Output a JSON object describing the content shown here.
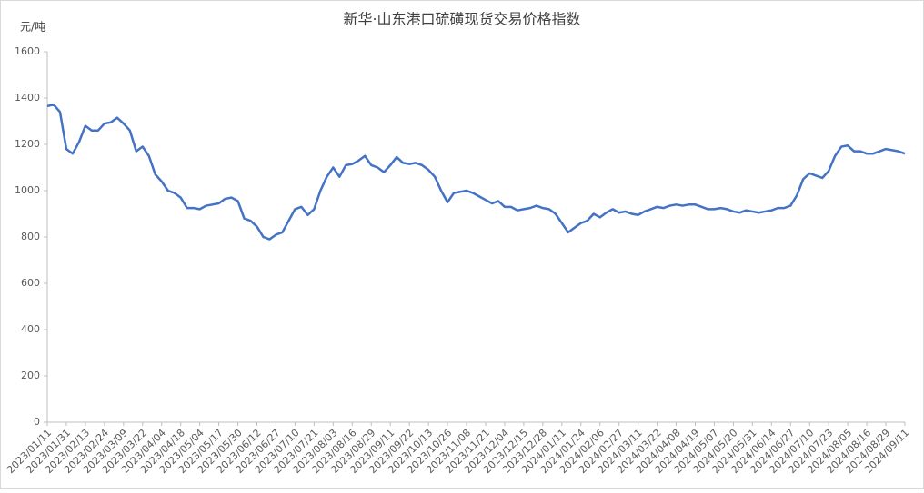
{
  "chart_data": {
    "type": "line",
    "title": "新华·山东港口硫磺现货交易价格指数",
    "y_label": "元/吨",
    "categories": [
      "2023/01/11",
      null,
      null,
      "2023/01/31",
      null,
      null,
      "2023/02/13",
      null,
      null,
      "2023/02/24",
      null,
      null,
      "2023/03/09",
      null,
      null,
      "2023/03/22",
      null,
      null,
      "2023/04/04",
      null,
      null,
      "2023/04/18",
      null,
      null,
      "2023/05/04",
      null,
      null,
      "2023/05/17",
      null,
      null,
      "2023/05/30",
      null,
      null,
      "2023/06/12",
      null,
      null,
      "2023/06/27",
      null,
      null,
      "2023/07/10",
      null,
      null,
      "2023/07/21",
      null,
      null,
      "2023/08/03",
      null,
      null,
      "2023/08/16",
      null,
      null,
      "2023/08/29",
      null,
      null,
      "2023/09/11",
      null,
      null,
      "2023/09/22",
      null,
      null,
      "2023/10/13",
      null,
      null,
      "2023/10/26",
      null,
      null,
      "2023/11/08",
      null,
      null,
      "2023/11/21",
      null,
      null,
      "2023/12/04",
      null,
      null,
      "2023/12/15",
      null,
      null,
      "2023/12/28",
      null,
      null,
      "2024/01/11",
      null,
      null,
      "2024/01/24",
      null,
      null,
      "2024/02/06",
      null,
      null,
      "2024/02/27",
      null,
      null,
      "2024/03/11",
      null,
      null,
      "2024/03/22",
      null,
      null,
      "2024/04/08",
      null,
      null,
      "2024/04/19",
      null,
      null,
      "2024/05/07",
      null,
      null,
      "2024/05/20",
      null,
      null,
      "2024/05/31",
      null,
      null,
      "2024/06/14",
      null,
      null,
      "2024/06/27",
      null,
      null,
      "2024/07/10",
      null,
      null,
      "2024/07/23",
      null,
      null,
      "2024/08/05",
      null,
      null,
      "2024/08/16",
      null,
      null,
      "2024/08/29",
      null,
      null,
      "2024/09/11"
    ],
    "series": [
      {
        "name": "价格指数",
        "color": "#4472c4",
        "values": [
          1365,
          1372,
          1340,
          1180,
          1160,
          1210,
          1280,
          1260,
          1260,
          1290,
          1295,
          1315,
          1290,
          1260,
          1170,
          1190,
          1150,
          1070,
          1040,
          1000,
          990,
          970,
          925,
          925,
          920,
          935,
          940,
          945,
          965,
          970,
          955,
          880,
          870,
          845,
          800,
          790,
          810,
          820,
          870,
          920,
          930,
          895,
          920,
          1000,
          1060,
          1100,
          1060,
          1110,
          1115,
          1130,
          1150,
          1110,
          1100,
          1080,
          1110,
          1145,
          1120,
          1115,
          1120,
          1110,
          1090,
          1060,
          1000,
          950,
          990,
          995,
          1000,
          990,
          975,
          960,
          945,
          955,
          930,
          930,
          915,
          920,
          925,
          935,
          925,
          920,
          900,
          860,
          820,
          840,
          860,
          870,
          900,
          885,
          905,
          920,
          905,
          910,
          900,
          895,
          910,
          920,
          930,
          925,
          935,
          940,
          935,
          940,
          940,
          930,
          920,
          920,
          925,
          920,
          910,
          905,
          915,
          910,
          905,
          910,
          915,
          925,
          925,
          935,
          980,
          1050,
          1075,
          1065,
          1055,
          1085,
          1150,
          1190,
          1195,
          1170,
          1170,
          1160,
          1160,
          1170,
          1180,
          1175,
          1170,
          1160
        ]
      }
    ],
    "ylim": [
      0,
      1600
    ],
    "yticks": [
      0,
      200,
      400,
      600,
      800,
      1000,
      1200,
      1400,
      1600
    ],
    "grid": false
  }
}
